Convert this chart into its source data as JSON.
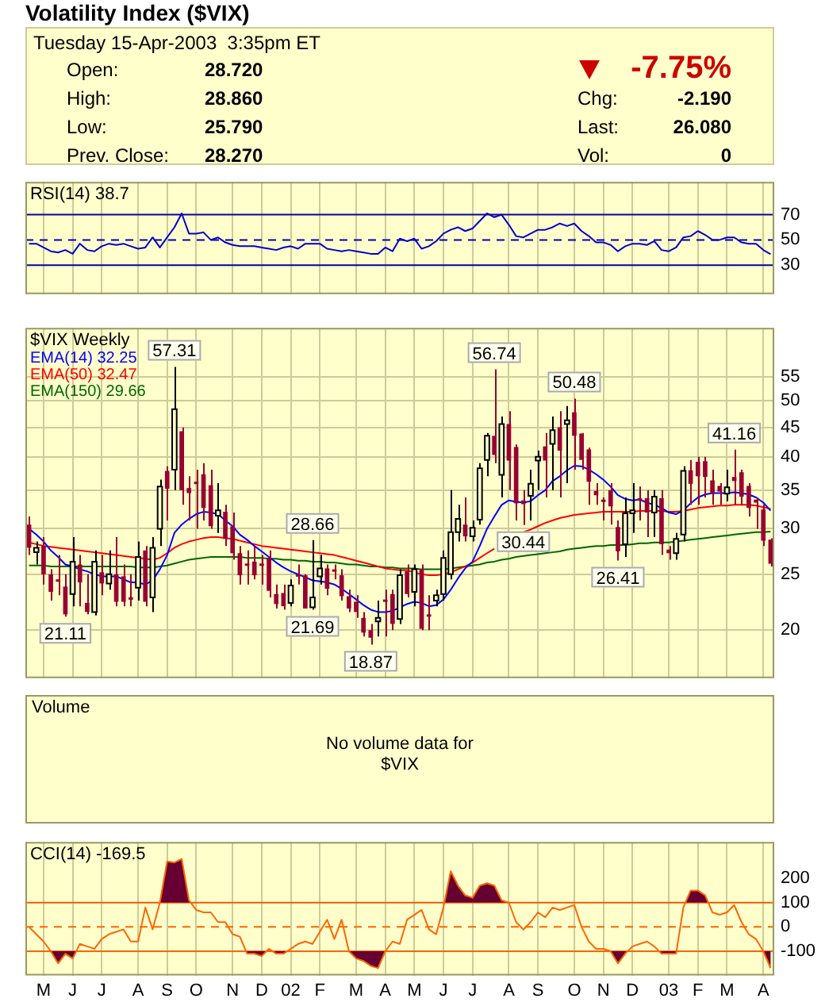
{
  "chart_data": [
    {
      "type": "other",
      "title": "Volatility Index ($VIX)",
      "annotations": [
        "Tuesday 15-Apr-2003  3:35pm ET",
        "Open:",
        "28.720",
        "High:",
        "28.860",
        "Low:",
        "25.790",
        "Prev. Close:",
        "28.270",
        "-7.75%",
        "Chg:",
        "-2.190",
        "Last:",
        "26.080",
        "Vol:",
        "0"
      ]
    },
    {
      "type": "line",
      "title": "RSI(14) 38.7",
      "categories": [
        null,
        null,
        null,
        null,
        null,
        null,
        null,
        null,
        null,
        null,
        null,
        null,
        null,
        null,
        null,
        null,
        null,
        null,
        null,
        null,
        null,
        null,
        null,
        null,
        null,
        null,
        null,
        null,
        null,
        null,
        null,
        null,
        null,
        null,
        null,
        null,
        null,
        null,
        null,
        null,
        null,
        null,
        null,
        null,
        null,
        null,
        null,
        null,
        null,
        null,
        null,
        null,
        null,
        null,
        null,
        null,
        null,
        null,
        null,
        null,
        null,
        null,
        null,
        null,
        null,
        null,
        null,
        null,
        null,
        null,
        null,
        null,
        null,
        null,
        null,
        null,
        null,
        null,
        null,
        null,
        null,
        null,
        null,
        null,
        null,
        null,
        null,
        null,
        null,
        null,
        null,
        null,
        null,
        null,
        null,
        null,
        null,
        null,
        null,
        null,
        null,
        null,
        null
      ],
      "values": [
        47,
        47,
        44,
        41,
        40,
        42,
        39,
        47,
        42,
        41,
        45,
        47,
        46,
        47,
        45,
        43,
        44,
        52,
        44,
        52,
        60,
        71,
        55,
        55,
        56,
        50,
        52,
        48,
        46,
        45,
        45,
        45,
        44,
        43,
        42,
        44,
        45,
        43,
        47,
        47,
        47,
        43,
        42,
        41,
        42,
        41,
        40,
        39,
        39,
        44,
        41,
        51,
        49,
        51,
        43,
        45,
        49,
        55,
        58,
        60,
        57,
        59,
        65,
        71,
        68,
        70,
        62,
        53,
        52,
        55,
        58,
        58,
        60,
        63,
        61,
        63,
        57,
        53,
        48,
        48,
        46,
        41,
        45,
        47,
        47,
        46,
        49,
        42,
        41,
        44,
        52,
        53,
        57,
        54,
        50,
        50,
        52,
        52,
        48,
        47,
        47,
        42,
        38.7
      ],
      "color": "#0000cc",
      "ylim": [
        7,
        96
      ],
      "yticks": [
        30,
        50,
        70
      ],
      "ref_lines": [
        {
          "axis": "y",
          "value": 70,
          "color": "#0000aa"
        },
        {
          "axis": "y",
          "value": 50,
          "color": "#0000aa",
          "line_style": "dashed"
        },
        {
          "axis": "y",
          "value": 30,
          "color": "#0000aa"
        }
      ],
      "grid": "x",
      "tick_labels": "y"
    },
    {
      "type": "candlestick",
      "title": "$VIX Weekly",
      "categories": [
        null,
        null,
        null,
        null,
        null,
        null,
        null,
        null,
        null,
        null,
        null,
        null,
        null,
        null,
        null,
        null,
        null,
        null,
        null,
        null,
        null,
        null,
        null,
        null,
        null,
        null,
        null,
        null,
        null,
        null,
        null,
        null,
        null,
        null,
        null,
        null,
        null,
        null,
        null,
        null,
        null,
        null,
        null,
        null,
        null,
        null,
        null,
        null,
        null,
        null,
        null,
        null,
        null,
        null,
        null,
        null,
        null,
        null,
        null,
        null,
        null,
        null,
        null,
        null,
        null,
        null,
        null,
        null,
        null,
        null,
        null,
        null,
        null,
        null,
        null,
        null,
        null,
        null,
        null,
        null,
        null,
        null,
        null,
        null,
        null,
        null,
        null,
        null,
        null,
        null,
        null,
        null,
        null,
        null,
        null,
        null,
        null,
        null,
        null,
        null,
        null,
        null,
        null
      ],
      "ohlc": [
        [
          30.5,
          31.5,
          27,
          27.8
        ],
        [
          27.3,
          28.5,
          26,
          27.8
        ],
        [
          28,
          29,
          24,
          25
        ],
        [
          25,
          25.5,
          22.5,
          23.3
        ],
        [
          24.5,
          27,
          23,
          24.3
        ],
        [
          23.8,
          25,
          21.11,
          21.3
        ],
        [
          23.1,
          29,
          22,
          26.3
        ],
        [
          26,
          27,
          22,
          24.2
        ],
        [
          22.3,
          25,
          21.3,
          21.5
        ],
        [
          21.5,
          27.5,
          21.2,
          26.3
        ],
        [
          25.2,
          27,
          23,
          24.1
        ],
        [
          24.1,
          27.5,
          23.5,
          25
        ],
        [
          25,
          29,
          22,
          22.4
        ],
        [
          24.8,
          26,
          22,
          22.4
        ],
        [
          22.8,
          25,
          22,
          22.6
        ],
        [
          23.7,
          28.5,
          22.5,
          26.8
        ],
        [
          27.5,
          28,
          22,
          22.4
        ],
        [
          22.8,
          29,
          21.5,
          27.8
        ],
        [
          30,
          36.5,
          28,
          35.5
        ],
        [
          37.8,
          38.5,
          31,
          35.2
        ],
        [
          38,
          57.31,
          35,
          48.4
        ],
        [
          44.3,
          45,
          33,
          35
        ],
        [
          35.3,
          37,
          31,
          34.6
        ],
        [
          36.2,
          38,
          30,
          36
        ],
        [
          37.3,
          39,
          31,
          32.6
        ],
        [
          35.7,
          38,
          30,
          30.3
        ],
        [
          31.6,
          36,
          29.5,
          32.3
        ],
        [
          32.1,
          33,
          28,
          28.8
        ],
        [
          30.3,
          32,
          26.5,
          27.2
        ],
        [
          27.2,
          28,
          24,
          24.9
        ],
        [
          26.1,
          27.5,
          24,
          26
        ],
        [
          26.3,
          28,
          24.5,
          24.9
        ],
        [
          26.1,
          27,
          24,
          26
        ],
        [
          26.7,
          27.5,
          22.8,
          23.4
        ],
        [
          23.1,
          24,
          21.8,
          22.2
        ],
        [
          23.2,
          24,
          21.7,
          22
        ],
        [
          22.3,
          24.5,
          22,
          23.9
        ],
        [
          25,
          26,
          24,
          24.8
        ],
        [
          24.9,
          25,
          21.8,
          21.8
        ],
        [
          21.9,
          28.66,
          21.69,
          22.8
        ],
        [
          24.8,
          27,
          24,
          25.6
        ],
        [
          25.6,
          26,
          23,
          23.6
        ],
        [
          25.5,
          26,
          24.5,
          25.3
        ],
        [
          24.9,
          25.5,
          22.5,
          22.9
        ],
        [
          22.9,
          23.5,
          21.5,
          21.8
        ],
        [
          22.4,
          23,
          21,
          21.5
        ],
        [
          21,
          21.5,
          19.5,
          19.8
        ],
        [
          20,
          20.5,
          18.87,
          19.4
        ],
        [
          20.7,
          22.5,
          19.5,
          21
        ],
        [
          22.6,
          23.5,
          19.5,
          22.4
        ],
        [
          23.1,
          23.5,
          20,
          20.5
        ],
        [
          20.9,
          25.5,
          20.5,
          24.9
        ],
        [
          25.3,
          26,
          22.8,
          23.1
        ],
        [
          23.3,
          26,
          22,
          25.5
        ],
        [
          25.5,
          26,
          20,
          20.1
        ],
        [
          21.3,
          23,
          20,
          21.2
        ],
        [
          22.5,
          23.5,
          22,
          23
        ],
        [
          23.1,
          27.5,
          22.5,
          26.7
        ],
        [
          25,
          35,
          24.5,
          29.6
        ],
        [
          29.6,
          33,
          28.5,
          31.2
        ],
        [
          30.5,
          34,
          28.5,
          29.1
        ],
        [
          29.1,
          31,
          28.5,
          30.1
        ],
        [
          31.1,
          39,
          30.5,
          38.2
        ],
        [
          39.5,
          44,
          37,
          43.5
        ],
        [
          43.5,
          56.74,
          39,
          40.3
        ],
        [
          37.2,
          47,
          34,
          45.6
        ],
        [
          45.6,
          48,
          35,
          39.4
        ],
        [
          41.6,
          42,
          31,
          33.2
        ],
        [
          33.6,
          35,
          30.44,
          33.1
        ],
        [
          34.2,
          38,
          31,
          35.9
        ],
        [
          39.4,
          41,
          35,
          40
        ],
        [
          41.7,
          44,
          34,
          39.4
        ],
        [
          42.1,
          47,
          35,
          44.5
        ],
        [
          45,
          48,
          34,
          41
        ],
        [
          45.6,
          49,
          36,
          46.3
        ],
        [
          47.8,
          50.48,
          38,
          43.5
        ],
        [
          43.9,
          44,
          38,
          39.5
        ],
        [
          41.2,
          41.5,
          33,
          36.2
        ],
        [
          34.9,
          36,
          33,
          34.3
        ],
        [
          33.7,
          34,
          31,
          33.6
        ],
        [
          35,
          36,
          30.5,
          32.8
        ],
        [
          30.2,
          31,
          26.41,
          27.4
        ],
        [
          28.2,
          34,
          26.8,
          31.9
        ],
        [
          31.9,
          36,
          29.5,
          32.3
        ],
        [
          33.9,
          35.5,
          31,
          33.8
        ],
        [
          33.9,
          35,
          29,
          32
        ],
        [
          32,
          35,
          29,
          34.1
        ],
        [
          33.9,
          35,
          27,
          28.2
        ],
        [
          27.6,
          28,
          26.5,
          27.2
        ],
        [
          27.2,
          29.5,
          26.5,
          28.8
        ],
        [
          29.3,
          38.5,
          28.5,
          37.8
        ],
        [
          37.9,
          39.5,
          33,
          35.9
        ],
        [
          39.2,
          40,
          33,
          37
        ],
        [
          39.3,
          40,
          34,
          36.9
        ],
        [
          36.4,
          38,
          33,
          34.5
        ],
        [
          35.6,
          36,
          33,
          34.8
        ],
        [
          34.5,
          38,
          33.5,
          35.4
        ],
        [
          36.9,
          41.16,
          33,
          36.3
        ],
        [
          37.6,
          38,
          33,
          34.1
        ],
        [
          35.6,
          36,
          31.5,
          32.6
        ],
        [
          33.7,
          34,
          30,
          33.3
        ],
        [
          32.4,
          33,
          28,
          28.6
        ],
        [
          28.72,
          28.86,
          25.79,
          26.08
        ]
      ],
      "series": [
        {
          "name": "EMA(14) 32.25",
          "type": "line",
          "color": "#0000ff",
          "values": [
            30,
            29.3,
            28.5,
            27.5,
            26.8,
            26,
            25.8,
            25.5,
            25.3,
            25,
            24.8,
            24.8,
            24.8,
            24.5,
            24.2,
            24.2,
            24,
            24.4,
            25.5,
            27,
            29.5,
            30.5,
            31.2,
            31.8,
            32.1,
            32,
            31.8,
            31,
            30.3,
            29.3,
            28.7,
            28,
            27.4,
            26.8,
            26.2,
            25.7,
            25.3,
            25,
            24.7,
            24.4,
            24.3,
            24.2,
            24,
            23.6,
            23.1,
            22.6,
            22.1,
            21.7,
            21.5,
            21.5,
            21.6,
            21.9,
            22.2,
            22.4,
            22.3,
            22,
            22.1,
            22.6,
            23.5,
            24.6,
            25.6,
            26.3,
            28,
            30,
            31.5,
            33,
            33.6,
            33.4,
            33.3,
            33.5,
            34.3,
            35,
            36.3,
            37,
            37.9,
            38.6,
            38.5,
            38,
            37.3,
            36.5,
            35.5,
            34.3,
            33.8,
            33.6,
            33.7,
            33.3,
            33,
            32.6,
            32,
            31.8,
            32.3,
            33.2,
            34,
            34.4,
            34.6,
            34.6,
            34.6,
            34.7,
            34.6,
            34.4,
            34,
            33.3,
            32.25
          ]
        },
        {
          "name": "EMA(50) 32.47",
          "type": "line",
          "color": "#ff0000",
          "values": [
            28.4,
            28.2,
            28,
            27.9,
            27.8,
            27.7,
            27.6,
            27.5,
            27.4,
            27.3,
            27.2,
            27.1,
            27,
            26.9,
            26.8,
            26.7,
            26.6,
            26.5,
            26.7,
            27.2,
            27.8,
            28.2,
            28.5,
            28.7,
            28.9,
            29,
            29,
            28.9,
            28.8,
            28.6,
            28.4,
            28.2,
            28,
            27.9,
            27.8,
            27.7,
            27.6,
            27.5,
            27.4,
            27.3,
            27.2,
            27.1,
            27,
            26.8,
            26.6,
            26.4,
            26.2,
            26,
            25.8,
            25.6,
            25.5,
            25.4,
            25.4,
            25.2,
            25,
            24.9,
            24.9,
            25,
            25.2,
            25.5,
            25.8,
            26.2,
            26.7,
            27.2,
            27.7,
            null,
            null,
            null,
            29.6,
            29.9,
            30.3,
            30.7,
            31,
            31.3,
            31.5,
            31.7,
            31.8,
            31.9,
            32,
            32.1,
            32.1,
            32.1,
            32.1,
            32.1,
            32.2,
            32.2,
            32.2,
            32.2,
            32.1,
            32.1,
            32.2,
            32.4,
            32.6,
            32.7,
            32.8,
            32.9,
            32.9,
            33,
            33,
            33,
            32.9,
            32.7,
            32.47
          ]
        },
        {
          "name": "EMA(150) 29.66",
          "type": "line",
          "color": "#006600",
          "values": [
            25.9,
            25.9,
            25.9,
            25.8,
            25.8,
            25.8,
            25.8,
            25.8,
            25.8,
            25.8,
            25.8,
            25.8,
            25.8,
            25.8,
            25.8,
            25.7,
            25.7,
            25.7,
            25.8,
            25.9,
            26.1,
            26.3,
            26.5,
            26.6,
            26.7,
            26.8,
            26.8,
            26.8,
            26.8,
            26.8,
            26.7,
            26.7,
            26.7,
            26.6,
            26.6,
            26.5,
            26.5,
            26.4,
            26.4,
            26.3,
            26.3,
            26.2,
            26.2,
            26.1,
            26,
            26,
            25.9,
            25.8,
            25.8,
            25.7,
            25.7,
            25.6,
            25.6,
            25.6,
            25.5,
            25.5,
            25.5,
            25.5,
            25.6,
            25.7,
            25.8,
            25.9,
            26,
            26.2,
            26.3,
            26.5,
            26.6,
            26.8,
            26.9,
            27,
            27.1,
            27.2,
            27.3,
            27.4,
            27.6,
            27.7,
            27.8,
            27.9,
            28,
            28,
            28.1,
            28.1,
            28.1,
            28.2,
            28.3,
            28.3,
            28.4,
            28.4,
            28.4,
            28.5,
            28.6,
            28.7,
            28.8,
            28.9,
            29,
            29.1,
            29.2,
            29.3,
            29.4,
            29.5,
            29.6,
            29.6,
            29.66
          ]
        }
      ],
      "log": true,
      "ylim": [
        16.5,
        67
      ],
      "yticks": [
        20,
        25,
        30,
        35,
        40,
        45,
        50,
        55
      ],
      "grid": true,
      "legend": "top left",
      "tick_labels": "y",
      "annotations": [
        {
          "text": "57.31",
          "y": 57.31
        },
        {
          "text": "21.11",
          "y": 21.11
        },
        {
          "text": "28.66",
          "y": 28.66
        },
        {
          "text": "21.69",
          "y": 21.69
        },
        {
          "text": "18.87",
          "y": 18.87
        },
        {
          "text": "56.74",
          "y": 56.74
        },
        {
          "text": "30.44",
          "y": 30.44
        },
        {
          "text": "50.48",
          "y": 50.48
        },
        {
          "text": "26.41",
          "y": 26.41
        },
        {
          "text": "41.16",
          "y": 41.16
        }
      ]
    },
    {
      "type": "other",
      "title": "Volume",
      "annotations": [
        "No volume data for $VIX"
      ]
    },
    {
      "type": "line",
      "title": "CCI(14) -169.5",
      "categories": [
        null,
        null,
        "M",
        null,
        null,
        null,
        "J",
        null,
        null,
        null,
        "J",
        null,
        null,
        null,
        null,
        "A",
        null,
        null,
        null,
        "S",
        null,
        null,
        null,
        "O",
        null,
        null,
        null,
        null,
        "N",
        null,
        null,
        null,
        "D",
        null,
        null,
        null,
        "02",
        null,
        null,
        null,
        "F",
        null,
        null,
        null,
        null,
        "M",
        null,
        null,
        null,
        "A",
        null,
        null,
        null,
        "M",
        null,
        null,
        null,
        "J",
        null,
        null,
        null,
        "J",
        null,
        null,
        null,
        null,
        "A",
        null,
        null,
        null,
        "S",
        null,
        null,
        null,
        null,
        "O",
        null,
        null,
        null,
        "N",
        null,
        null,
        null,
        "D",
        null,
        null,
        null,
        null,
        "03",
        null,
        null,
        null,
        "F",
        null,
        null,
        null,
        "M",
        null,
        null,
        null,
        null,
        "A",
        null
      ],
      "values": [
        0,
        -30,
        -60,
        -100,
        -150,
        -110,
        -130,
        -70,
        -80,
        -90,
        -50,
        -30,
        -20,
        -10,
        -60,
        -60,
        80,
        -10,
        100,
        270,
        265,
        280,
        110,
        70,
        60,
        60,
        20,
        20,
        -30,
        -40,
        -110,
        -110,
        -120,
        -90,
        -110,
        -110,
        -90,
        -70,
        -60,
        -70,
        -20,
        30,
        -50,
        30,
        -100,
        -130,
        -140,
        -160,
        -170,
        -100,
        -60,
        -70,
        30,
        50,
        70,
        -10,
        -30,
        80,
        230,
        170,
        130,
        120,
        170,
        180,
        170,
        110,
        100,
        20,
        -10,
        20,
        60,
        40,
        80,
        70,
        80,
        90,
        0,
        -60,
        -90,
        -90,
        -100,
        -150,
        -110,
        -80,
        -70,
        -60,
        -80,
        -110,
        -110,
        -110,
        80,
        150,
        150,
        130,
        60,
        50,
        60,
        90,
        20,
        -30,
        -50,
        -100,
        -169.5
      ],
      "color": "#ff6600",
      "ylim": [
        -200,
        350
      ],
      "yticks": [
        200,
        100,
        0,
        -100
      ],
      "ref_lines": [
        {
          "axis": "y",
          "value": 100,
          "color": "#ff6600"
        },
        {
          "axis": "y",
          "value": 0,
          "color": "#ff6600",
          "line_style": "dashed"
        },
        {
          "axis": "y",
          "value": -100,
          "color": "#ff6600"
        }
      ],
      "grid": "x"
    }
  ]
}
